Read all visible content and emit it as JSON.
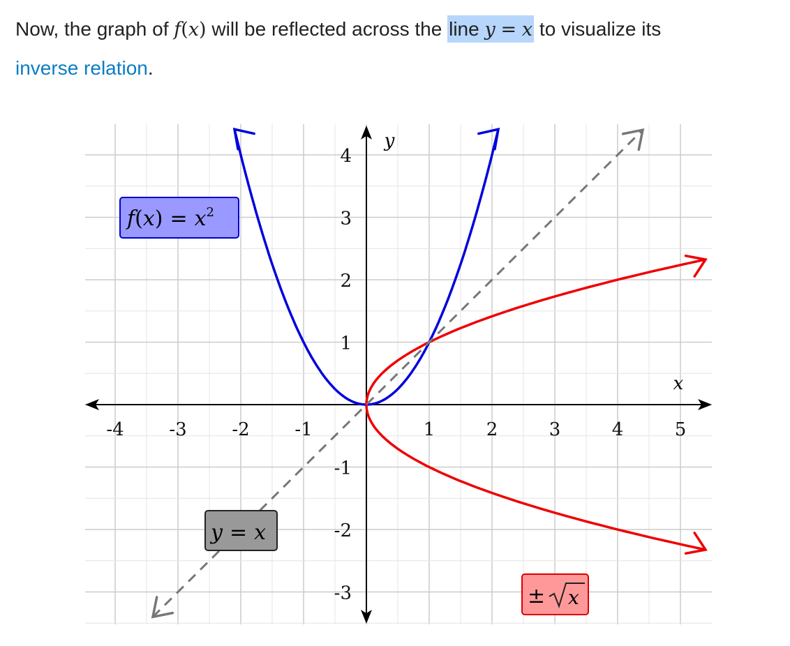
{
  "paragraph": {
    "text_before": "Now, the graph of ",
    "f": "f",
    "lparen": "(",
    "x": "x",
    "rparen": ")",
    "text_middle": " will be reflected across the ",
    "hl_line": "line ",
    "hl_y": "y",
    "hl_eq": "=",
    "hl_x": "x",
    "text_after": " to visualize its ",
    "link_text": "inverse relation",
    "period": "."
  },
  "chart_data": {
    "type": "line",
    "title": "",
    "xlabel": "x",
    "ylabel": "y",
    "xlim": [
      -4.5,
      5.5
    ],
    "ylim": [
      -3.5,
      4.5
    ],
    "x_ticks": [
      -4,
      -3,
      -2,
      -1,
      1,
      2,
      3,
      4,
      5
    ],
    "y_ticks": [
      -3,
      -2,
      -1,
      1,
      2,
      3,
      4
    ],
    "x_tick_labels": [
      "-4",
      "-3",
      "-2",
      "-1",
      "1",
      "2",
      "3",
      "4",
      "5"
    ],
    "y_tick_labels": [
      "-3",
      "-2",
      "-1",
      "1",
      "2",
      "3",
      "4"
    ],
    "grid": true,
    "series": [
      {
        "name": "f(x) = x²",
        "color": "#0000dd",
        "style": "solid",
        "x": [
          -2.1,
          -1.8,
          -1.5,
          -1.2,
          -1.0,
          -0.8,
          -0.6,
          -0.4,
          -0.2,
          0,
          0.2,
          0.4,
          0.6,
          0.8,
          1.0,
          1.2,
          1.5,
          1.8,
          2.1
        ],
        "y": [
          4.41,
          3.24,
          2.25,
          1.44,
          1.0,
          0.64,
          0.36,
          0.16,
          0.04,
          0,
          0.04,
          0.16,
          0.36,
          0.64,
          1.0,
          1.44,
          2.25,
          3.24,
          4.41
        ]
      },
      {
        "name": "±√x",
        "color": "#ee0000",
        "style": "solid",
        "x": [
          0,
          0.05,
          0.2,
          0.5,
          1,
          1.5,
          2,
          2.5,
          3,
          3.5,
          4,
          4.5,
          5.4
        ],
        "y": [
          0,
          0.224,
          0.447,
          0.707,
          1.0,
          1.225,
          1.414,
          1.581,
          1.732,
          1.871,
          2.0,
          2.121,
          2.324
        ]
      },
      {
        "name": "y = x",
        "color": "#777777",
        "style": "dashed",
        "x": [
          -3.4,
          4.4
        ],
        "y": [
          -3.4,
          4.4
        ]
      }
    ],
    "labels": {
      "f_label": {
        "f": "f",
        "lp": "(",
        "x": "x",
        "rp": ")",
        "eq": "=",
        "x2": "x",
        "sup": "2",
        "bg": "#9999ff",
        "border": "#0000cc"
      },
      "yx_label": {
        "y": "y",
        "eq": "=",
        "x": "x",
        "bg": "#999999",
        "border": "#222222"
      },
      "sqrt_label": {
        "pm": "±",
        "x": "x",
        "bg": "#ff9999",
        "border": "#dd0000"
      }
    }
  }
}
